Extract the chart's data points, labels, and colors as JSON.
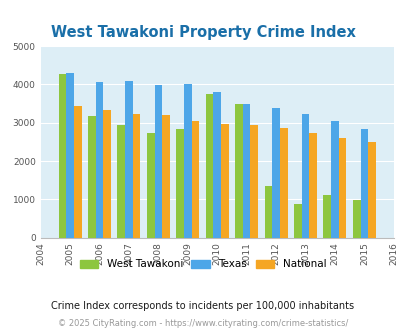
{
  "title": "West Tawakoni Property Crime Index",
  "all_years": [
    2004,
    2005,
    2006,
    2007,
    2008,
    2009,
    2010,
    2011,
    2012,
    2013,
    2014,
    2015,
    2016
  ],
  "bar_years": [
    2005,
    2006,
    2007,
    2008,
    2009,
    2010,
    2011,
    2012,
    2013,
    2014,
    2015
  ],
  "west_tawakoni": [
    4270,
    3175,
    2950,
    2740,
    2840,
    3760,
    3490,
    1335,
    880,
    1110,
    995
  ],
  "texas": [
    4305,
    4075,
    4100,
    3990,
    4020,
    3800,
    3480,
    3375,
    3240,
    3040,
    2840
  ],
  "national": [
    3430,
    3340,
    3220,
    3200,
    3040,
    2960,
    2940,
    2870,
    2730,
    2605,
    2485
  ],
  "color_wt": "#8dc63f",
  "color_tx": "#4da6e8",
  "color_nat": "#f5a623",
  "bg_color": "#ddeef6",
  "ylim": [
    0,
    5000
  ],
  "yticks": [
    0,
    1000,
    2000,
    3000,
    4000,
    5000
  ],
  "subtitle": "Crime Index corresponds to incidents per 100,000 inhabitants",
  "footer": "© 2025 CityRating.com - https://www.cityrating.com/crime-statistics/",
  "title_color": "#1a6fa8",
  "subtitle_color": "#1a1a1a",
  "footer_color": "#999999",
  "footer_link_color": "#4da6e8",
  "legend_labels": [
    "West Tawakoni",
    "Texas",
    "National"
  ]
}
